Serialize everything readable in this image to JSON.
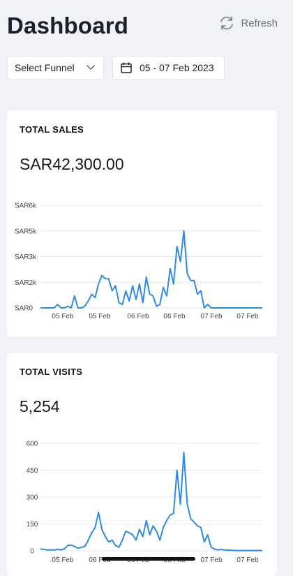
{
  "header": {
    "title": "Dashboard",
    "refresh_label": "Refresh"
  },
  "controls": {
    "funnel": {
      "value": "Select Funnel"
    },
    "date_range": {
      "value": "05 - 07 Feb 2023"
    }
  },
  "colors": {
    "accent": "#2d8be6",
    "grid": "#e6e7eb",
    "background": "#f1f2f5"
  },
  "cards": [
    {
      "title": "TOTAL SALES",
      "value": "SAR42,300.00"
    },
    {
      "title": "TOTAL VISITS",
      "value": "5,254"
    }
  ],
  "chart_data": [
    {
      "type": "line",
      "ylim": [
        0,
        6000
      ],
      "y_ticks": [
        {
          "value": 0,
          "label": "SAR0"
        },
        {
          "value": 1500,
          "label": "SAR2k"
        },
        {
          "value": 3000,
          "label": "SAR3k"
        },
        {
          "value": 4500,
          "label": "SAR5k"
        },
        {
          "value": 6000,
          "label": "SAR6k"
        }
      ],
      "x_labels": [
        "05 Feb",
        "05 Feb",
        "06 Feb",
        "06 Feb",
        "07 Feb",
        "07 Feb"
      ],
      "values": [
        0,
        0,
        0,
        0,
        0,
        200,
        0,
        0,
        100,
        0,
        700,
        0,
        0,
        100,
        400,
        800,
        600,
        1400,
        1900,
        1700,
        1700,
        1000,
        1300,
        300,
        200,
        1000,
        400,
        1300,
        500,
        1400,
        300,
        1800,
        800,
        700,
        100,
        200,
        1200,
        700,
        2300,
        1400,
        3600,
        2700,
        4500,
        2000,
        1600,
        1600,
        800,
        1000,
        0,
        200,
        0,
        0,
        0,
        0,
        0,
        0,
        0,
        0,
        0,
        0,
        0,
        0,
        0,
        0,
        0,
        0
      ]
    },
    {
      "type": "line",
      "ylim": [
        0,
        600
      ],
      "y_ticks": [
        {
          "value": 0,
          "label": "0"
        },
        {
          "value": 150,
          "label": "150"
        },
        {
          "value": 300,
          "label": "300"
        },
        {
          "value": 450,
          "label": "450"
        },
        {
          "value": 600,
          "label": "600"
        }
      ],
      "x_labels": [
        "05 Feb",
        "06 Feb",
        "06 Feb",
        "06 Feb",
        "07 Feb",
        "07 Feb"
      ],
      "values": [
        10,
        8,
        5,
        6,
        5,
        8,
        6,
        10,
        30,
        32,
        25,
        15,
        20,
        25,
        60,
        100,
        130,
        215,
        120,
        80,
        50,
        60,
        30,
        20,
        60,
        110,
        100,
        90,
        60,
        120,
        80,
        170,
        90,
        140,
        110,
        60,
        130,
        170,
        200,
        210,
        450,
        260,
        550,
        260,
        180,
        160,
        140,
        130,
        50,
        90,
        20,
        10,
        5,
        8,
        5,
        4,
        3,
        2,
        2,
        2,
        2,
        2,
        2,
        2,
        2,
        2
      ]
    }
  ]
}
